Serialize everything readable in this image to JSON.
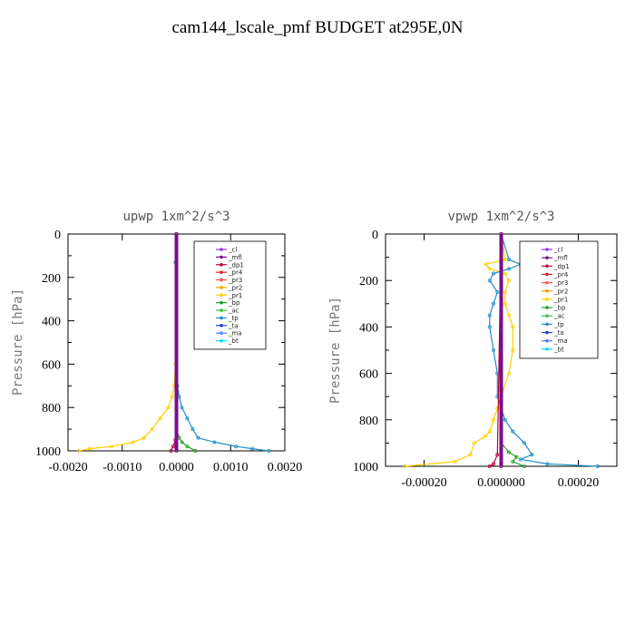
{
  "main_title": "cam144_lscale_pmf  BUDGET at295E,0N",
  "legend_items": [
    {
      "label": "_cl",
      "color": "#9b30ff"
    },
    {
      "label": "_mfl",
      "color": "#7a0e8a"
    },
    {
      "label": "_dp1",
      "color": "#c0003c"
    },
    {
      "label": "_pr4",
      "color": "#e0202a"
    },
    {
      "label": "_pr3",
      "color": "#ff5050"
    },
    {
      "label": "_pr2",
      "color": "#f0a000"
    },
    {
      "label": "_pr1",
      "color": "#ffd000"
    },
    {
      "label": "_bp",
      "color": "#20a020"
    },
    {
      "label": "_ac",
      "color": "#40c040"
    },
    {
      "label": "_tp",
      "color": "#1e90c8"
    },
    {
      "label": "_ta",
      "color": "#2040d0"
    },
    {
      "label": "_ma",
      "color": "#5080ff"
    },
    {
      "label": "_bt",
      "color": "#00e0f0"
    }
  ],
  "chart_data": [
    {
      "type": "line",
      "title": "upwp  1xm^2/s^3",
      "ylabel": "Pressure [hPa]",
      "xlabel": "",
      "xlim": [
        -0.002,
        0.002
      ],
      "ylim": [
        1000,
        0
      ],
      "xticks": [
        -0.002,
        -0.001,
        0.0,
        0.001,
        0.002
      ],
      "xtick_labels": [
        "-0.0020",
        "-0.0010",
        "0.0000",
        "0.0010",
        "0.0020"
      ],
      "yticks": [
        0,
        200,
        400,
        600,
        800,
        1000
      ],
      "ytick_labels": [
        "0",
        "200",
        "400",
        "600",
        "800",
        "1000"
      ],
      "legend_position": "top-right",
      "series": [
        {
          "name": "_pr1",
          "pressure": [
            0,
            500,
            600,
            700,
            750,
            800,
            850,
            900,
            940,
            960,
            980,
            990,
            1000
          ],
          "values": [
            0,
            0,
            -2e-05,
            -4e-05,
            -8e-05,
            -0.00015,
            -0.0003,
            -0.00045,
            -0.0006,
            -0.0008,
            -0.0012,
            -0.0016,
            -0.0018
          ]
        },
        {
          "name": "_tp",
          "pressure": [
            0,
            130,
            140,
            600,
            700,
            750,
            800,
            850,
            900,
            940,
            960,
            980,
            990,
            1000
          ],
          "values": [
            0,
            -2e-05,
            0,
            0,
            2e-05,
            5e-05,
            0.0001,
            0.0002,
            0.0003,
            0.0004,
            0.0007,
            0.0011,
            0.0014,
            0.0017
          ]
        },
        {
          "name": "_bp",
          "pressure": [
            0,
            900,
            940,
            960,
            980,
            1000
          ],
          "values": [
            0,
            0,
            5e-05,
            0.0001,
            0.0002,
            0.00035
          ]
        },
        {
          "name": "_dp1",
          "pressure": [
            0,
            950,
            980,
            1000
          ],
          "values": [
            0,
            -2e-05,
            -6e-05,
            -0.0001
          ]
        },
        {
          "name": "_mfl",
          "pressure": [
            0,
            1000
          ],
          "values": [
            0,
            0
          ]
        }
      ]
    },
    {
      "type": "line",
      "title": "vpwp  1xm^2/s^3",
      "ylabel": "Pressure [hPa]",
      "xlabel": "",
      "xlim": [
        -0.0003,
        0.0003
      ],
      "ylim": [
        1000,
        0
      ],
      "xticks": [
        -0.0002,
        0.0,
        0.0002
      ],
      "xtick_labels": [
        "-0.00020",
        "0.000000",
        "0.00020"
      ],
      "yticks": [
        0,
        200,
        400,
        600,
        800,
        1000
      ],
      "ytick_labels": [
        "0",
        "200",
        "400",
        "600",
        "800",
        "1000"
      ],
      "legend_position": "top-right",
      "series": [
        {
          "name": "_pr1",
          "pressure": [
            0,
            110,
            130,
            150,
            170,
            200,
            250,
            300,
            350,
            400,
            500,
            600,
            700,
            750,
            800,
            850,
            870,
            900,
            950,
            980,
            1000
          ],
          "values": [
            0,
            1e-05,
            -4e-05,
            -3e-05,
            1e-05,
            2e-05,
            1e-05,
            1e-05,
            2e-05,
            3e-05,
            3e-05,
            2e-05,
            0,
            -1e-05,
            -2e-05,
            -3e-05,
            -4e-05,
            -7e-05,
            -8e-05,
            -0.00012,
            -0.00025
          ]
        },
        {
          "name": "_tp",
          "pressure": [
            0,
            110,
            130,
            150,
            170,
            200,
            250,
            300,
            350,
            400,
            500,
            600,
            700,
            750,
            800,
            850,
            900,
            950,
            970,
            990,
            1000
          ],
          "values": [
            0,
            2e-05,
            5e-05,
            2e-05,
            -2e-05,
            -3e-05,
            -1e-05,
            -2e-05,
            -3e-05,
            -3e-05,
            -2e-05,
            -1e-05,
            -1e-05,
            0,
            1e-05,
            3e-05,
            6e-05,
            8e-05,
            5e-05,
            0.00012,
            0.00025
          ]
        },
        {
          "name": "_bp",
          "pressure": [
            0,
            900,
            940,
            960,
            980,
            1000
          ],
          "values": [
            0,
            0,
            2e-05,
            4e-05,
            3e-05,
            6e-05
          ]
        },
        {
          "name": "_dp1",
          "pressure": [
            0,
            950,
            990,
            1000
          ],
          "values": [
            0,
            -1e-05,
            -2e-05,
            -3e-05
          ]
        },
        {
          "name": "_mfl",
          "pressure": [
            0,
            1000
          ],
          "values": [
            0,
            0
          ]
        }
      ]
    }
  ]
}
